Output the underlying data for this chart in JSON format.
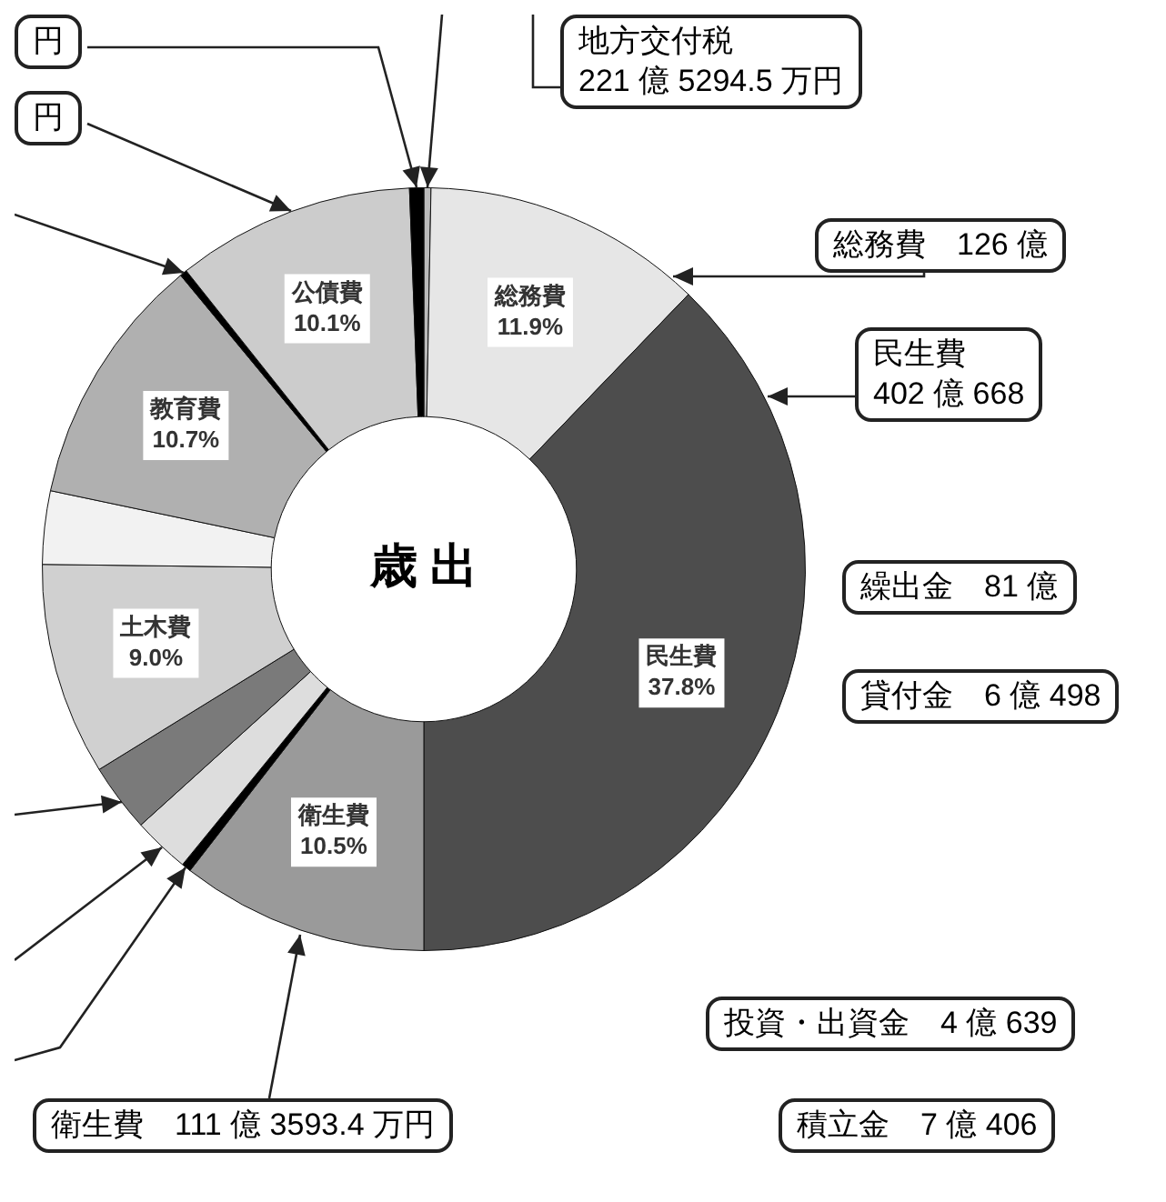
{
  "chart_data": {
    "type": "donut",
    "title": "歳 出",
    "categories": [
      null,
      "総務費",
      "民生費",
      "衛生費",
      null,
      null,
      null,
      "土木費",
      null,
      "教育費",
      null,
      "公債費",
      null
    ],
    "values": [
      0.3,
      11.9,
      37.8,
      10.5,
      0.4,
      2.4,
      2.9,
      9.0,
      3.1,
      10.7,
      0.3,
      10.1,
      0.6
    ],
    "colors": [
      "#bbbbbb",
      "#e6e6e6",
      "#4d4d4d",
      "#9a9a9a",
      "#000000",
      "#dddddd",
      "#7a7a7a",
      "#d0d0d0",
      "#f2f2f2",
      "#b0b0b0",
      "#000000",
      "#cccccc",
      "#000000"
    ],
    "value_labels": [
      null,
      "11.9%",
      "37.8%",
      "10.5%",
      null,
      null,
      null,
      "9.0%",
      null,
      "10.7%",
      null,
      "10.1%",
      null
    ],
    "annotations": [
      "円",
      "円",
      "地方交付税\n221 億 5294.5 万円",
      "総務費　126 億",
      "民生費\n402 億 668",
      "繰出金　81 億",
      "貸付金　6 億 498",
      "投資・出資金　4 億 639",
      "積立金　7 億 406",
      "衛生費　111 億 3593.4 万円"
    ]
  }
}
